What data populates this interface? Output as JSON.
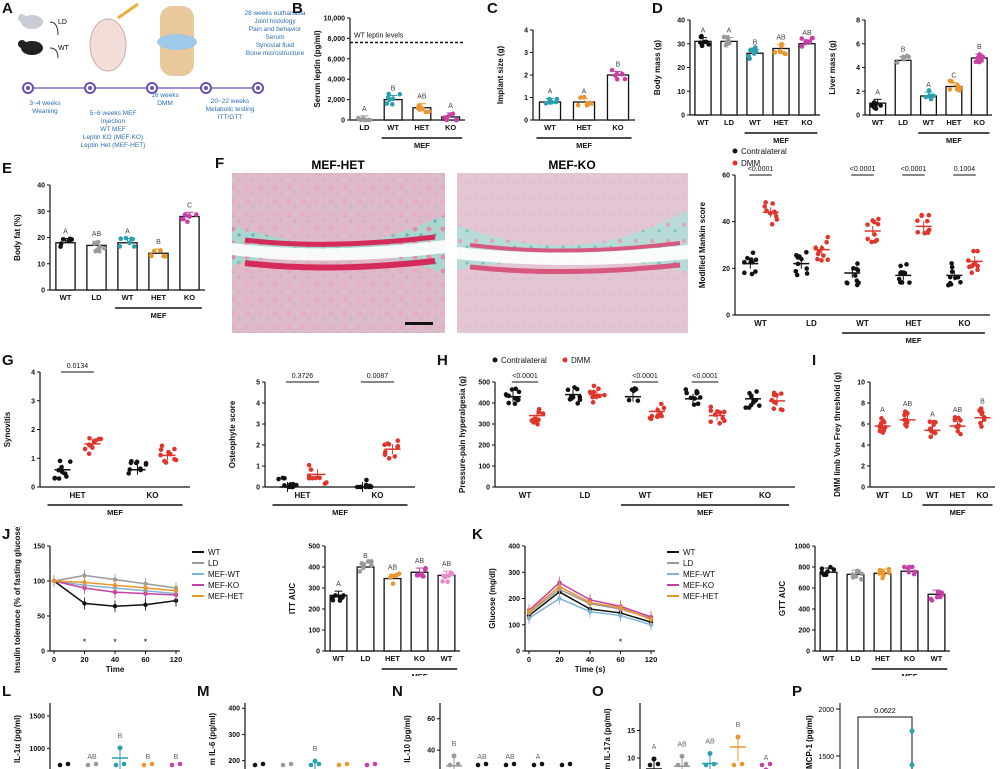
{
  "colors": {
    "black": "#111111",
    "gray": "#9a9a9a",
    "teal": "#2a9fae",
    "orange": "#e8962e",
    "magenta": "#c83fa5",
    "red": "#e0352b",
    "lightblue": "#7fb6d6",
    "pink": "#e88ac8"
  },
  "panels": {
    "A": {
      "label": "A",
      "mouse_ld": "LD",
      "mouse_wt": "WT",
      "steps": [
        {
          "text": "3~4 weeks\nWeaning",
          "color": "#2a6fb5"
        },
        {
          "text": "5~6 weeks MEF\nInjection\nWT MEF\nLeptin KO (MEF-KO)\nLeptin Het (MEF-HET)",
          "color": "#2a6fb5"
        },
        {
          "text": "16 weeks\nDMM",
          "color": "#2a6fb5"
        },
        {
          "text": "20~22 weeks\nMetabolic testing\nITT/GTT",
          "color": "#2a6fb5"
        },
        {
          "text": "28 weeks euthanasia\nJoint histology\nPain and behavior\nSerum\nSynovial fluid\nBone microstructure",
          "color": "#2a6fb5"
        }
      ]
    },
    "F": {
      "label": "F",
      "left_title": "MEF-HET",
      "right_title": "MEF-KO"
    },
    "P": {
      "label": "P",
      "ylabel": "MCP-1 (pg/ml)",
      "tick_top": "2000",
      "tick_mid": "1500",
      "pvalue": "0.0622"
    }
  },
  "chart_data": [
    {
      "id": "B",
      "label": "B",
      "type": "bar",
      "title": "",
      "ylabel": "Serum leptin (pg/ml)",
      "yticks": [
        "0",
        "2,000",
        "4,000",
        "6,000",
        "8,000",
        "10,000"
      ],
      "ylim": [
        0,
        10000
      ],
      "categories": [
        "LD",
        "WT",
        "HET",
        "KO"
      ],
      "values": [
        0,
        2000,
        1200,
        300
      ],
      "letters": [
        "A",
        "B",
        "AB",
        "A"
      ],
      "point_colors": [
        "gray",
        "teal",
        "orange",
        "magenta"
      ],
      "reference_line": {
        "value": 7600,
        "label": "WT leptin levels"
      },
      "group_label": "MEF",
      "group_span": [
        1,
        3
      ]
    },
    {
      "id": "C",
      "label": "C",
      "type": "bar",
      "ylabel": "Implant size (g)",
      "yticks": [
        "0",
        "1",
        "2",
        "3",
        "4"
      ],
      "ylim": [
        0,
        4
      ],
      "categories": [
        "WT",
        "HET",
        "KO"
      ],
      "values": [
        0.8,
        0.8,
        2.0
      ],
      "letters": [
        "A",
        "A",
        "B"
      ],
      "point_colors": [
        "teal",
        "orange",
        "magenta"
      ],
      "group_label": "MEF",
      "group_span": [
        0,
        2
      ]
    },
    {
      "id": "D1",
      "label": "D",
      "type": "bar",
      "ylabel": "Body mass (g)",
      "yticks": [
        "0",
        "10",
        "20",
        "30",
        "40"
      ],
      "ylim": [
        0,
        40
      ],
      "categories": [
        "WT",
        "LD",
        "WT",
        "HET",
        "KO"
      ],
      "values": [
        31,
        31,
        26,
        28,
        30
      ],
      "letters": [
        "A",
        "A",
        "B",
        "AB",
        "AB"
      ],
      "point_colors": [
        "black",
        "gray",
        "teal",
        "orange",
        "magenta"
      ],
      "group_label": "MEF",
      "group_span": [
        2,
        4
      ]
    },
    {
      "id": "D2",
      "label": "",
      "type": "bar",
      "ylabel": "Liver mass (g)",
      "yticks": [
        "0",
        "2",
        "4",
        "6",
        "8"
      ],
      "ylim": [
        0,
        8
      ],
      "categories": [
        "WT",
        "LD",
        "WT",
        "HET",
        "KO"
      ],
      "values": [
        1.0,
        4.6,
        1.6,
        2.4,
        4.8
      ],
      "letters": [
        "A",
        "B",
        "A",
        "C",
        "B"
      ],
      "point_colors": [
        "black",
        "gray",
        "teal",
        "orange",
        "magenta"
      ],
      "group_label": "MEF",
      "group_span": [
        2,
        4
      ]
    },
    {
      "id": "E",
      "label": "E",
      "type": "bar",
      "ylabel": "Body fat (%)",
      "yticks": [
        "0",
        "10",
        "20",
        "30",
        "40"
      ],
      "ylim": [
        0,
        40
      ],
      "categories": [
        "WT",
        "LD",
        "WT",
        "HET",
        "KO"
      ],
      "values": [
        18,
        17,
        18,
        14,
        28
      ],
      "letters": [
        "A",
        "AB",
        "A",
        "B",
        "C"
      ],
      "point_colors": [
        "black",
        "gray",
        "teal",
        "orange",
        "magenta"
      ],
      "group_label": "MEF",
      "group_span": [
        2,
        4
      ]
    },
    {
      "id": "F2",
      "label": "",
      "type": "scatter",
      "ylabel": "Modified Mankin score",
      "yticks": [
        "0",
        "20",
        "40",
        "60"
      ],
      "ylim": [
        0,
        60
      ],
      "categories": [
        "WT",
        "LD",
        "WT",
        "HET",
        "KO"
      ],
      "series": [
        {
          "name": "Contralateral",
          "color": "black",
          "values": [
            22,
            22,
            18,
            17,
            17
          ]
        },
        {
          "name": "DMM",
          "color": "red",
          "values": [
            44,
            28,
            36,
            38,
            23
          ]
        }
      ],
      "pvalues": [
        "<0.0001",
        "",
        "<0.0001",
        "<0.0001",
        "0.1004"
      ],
      "group_label": "MEF",
      "group_span": [
        2,
        4
      ]
    },
    {
      "id": "G1",
      "label": "G",
      "type": "scatter",
      "ylabel": "Synovitis",
      "yticks": [
        "0",
        "1",
        "2",
        "3",
        "4"
      ],
      "ylim": [
        0,
        4
      ],
      "categories": [
        "HET",
        "KO"
      ],
      "series": [
        {
          "name": "Contralateral",
          "color": "black",
          "values": [
            0.6,
            0.6
          ]
        },
        {
          "name": "DMM",
          "color": "red",
          "values": [
            1.5,
            1.1
          ]
        }
      ],
      "pvalues": [
        "0.0134",
        ""
      ],
      "group_label": "MEF",
      "group_span": [
        0,
        1
      ]
    },
    {
      "id": "G2",
      "label": "",
      "type": "scatter",
      "ylabel": "Osteophyte score",
      "yticks": [
        "0",
        "1",
        "2",
        "3",
        "4",
        "5"
      ],
      "ylim": [
        0,
        5
      ],
      "categories": [
        "HET",
        "KO"
      ],
      "series": [
        {
          "name": "Contralateral",
          "color": "black",
          "values": [
            0.0,
            0.0
          ]
        },
        {
          "name": "DMM",
          "color": "red",
          "values": [
            0.6,
            1.8
          ]
        }
      ],
      "pvalues": [
        "0.3726",
        "0.0087"
      ],
      "group_label": "MEF",
      "group_span": [
        0,
        1
      ]
    },
    {
      "id": "H",
      "label": "H",
      "type": "scatter",
      "ylabel": "Pressure-pain hyperalgesia (g)",
      "yticks": [
        "0",
        "100",
        "200",
        "300",
        "400",
        "500"
      ],
      "ylim": [
        0,
        500
      ],
      "categories": [
        "WT",
        "LD",
        "WT",
        "HET",
        "KO"
      ],
      "series": [
        {
          "name": "Contralateral",
          "color": "black",
          "values": [
            430,
            440,
            430,
            420,
            420
          ]
        },
        {
          "name": "DMM",
          "color": "red",
          "values": [
            340,
            440,
            360,
            340,
            410
          ]
        }
      ],
      "pvalues": [
        "<0.0001",
        "",
        "<0.0001",
        "<0.0001",
        ""
      ],
      "legend": [
        "Contralateral",
        "DMM"
      ],
      "group_label": "MEF",
      "group_span": [
        2,
        4
      ]
    },
    {
      "id": "I",
      "label": "I",
      "type": "scatter",
      "ylabel": "DMM limb Von Frey threshold (g)",
      "yticks": [
        "0",
        "2",
        "4",
        "6",
        "8",
        "10"
      ],
      "ylim": [
        0,
        10
      ],
      "categories": [
        "WT",
        "LD",
        "WT",
        "HET",
        "KO"
      ],
      "series": [
        {
          "name": "DMM",
          "color": "red",
          "values": [
            5.8,
            6.4,
            5.4,
            5.8,
            6.6
          ]
        }
      ],
      "letters": [
        "A",
        "AB",
        "A",
        "AB",
        "B"
      ],
      "group_label": "MEF",
      "group_span": [
        2,
        4
      ]
    },
    {
      "id": "J1",
      "label": "J",
      "type": "line",
      "ylabel": "Insulin tolerance (% of fasting glucose)",
      "xlabel": "Time",
      "x": [
        0,
        20,
        40,
        60,
        120
      ],
      "xticks": [
        "0",
        "20",
        "40",
        "60",
        "120"
      ],
      "yticks": [
        "0",
        "50",
        "100",
        "150"
      ],
      "ylim": [
        0,
        150
      ],
      "series": [
        {
          "name": "WT",
          "color": "black",
          "values": [
            100,
            68,
            64,
            66,
            72
          ]
        },
        {
          "name": "LD",
          "color": "gray",
          "values": [
            100,
            108,
            102,
            96,
            90
          ]
        },
        {
          "name": "MEF-WT",
          "color": "lightblue",
          "values": [
            100,
            94,
            90,
            86,
            82
          ]
        },
        {
          "name": "MEF-KO",
          "color": "magenta",
          "values": [
            100,
            90,
            84,
            82,
            80
          ]
        },
        {
          "name": "MEF-HET",
          "color": "orange",
          "values": [
            100,
            98,
            94,
            90,
            86
          ]
        }
      ],
      "stars": [
        1,
        2,
        3
      ]
    },
    {
      "id": "J2",
      "label": "",
      "type": "bar",
      "ylabel": "ITT AUC",
      "yticks": [
        "0",
        "100",
        "200",
        "300",
        "400",
        "500"
      ],
      "ylim": [
        0,
        500
      ],
      "categories": [
        "WT",
        "LD",
        "HET",
        "KO",
        "WT"
      ],
      "values": [
        265,
        400,
        345,
        375,
        360
      ],
      "letters": [
        "A",
        "B",
        "AB",
        "AB",
        "AB"
      ],
      "point_colors": [
        "black",
        "gray",
        "orange",
        "magenta",
        "pink"
      ],
      "group_label": "MEF",
      "group_span": [
        2,
        4
      ]
    },
    {
      "id": "K1",
      "label": "K",
      "type": "line",
      "ylabel": "Glucose (mg/dl)",
      "xlabel": "Time (s)",
      "x": [
        0,
        20,
        40,
        60,
        120
      ],
      "xticks": [
        "0",
        "20",
        "40",
        "60",
        "120"
      ],
      "yticks": [
        "0",
        "100",
        "200",
        "300",
        "400"
      ],
      "ylim": [
        0,
        400
      ],
      "series": [
        {
          "name": "WT",
          "color": "black",
          "values": [
            135,
            225,
            160,
            145,
            110
          ]
        },
        {
          "name": "LD",
          "color": "gray",
          "values": [
            145,
            235,
            180,
            160,
            125
          ]
        },
        {
          "name": "MEF-WT",
          "color": "lightblue",
          "values": [
            125,
            200,
            150,
            135,
            100
          ]
        },
        {
          "name": "MEF-KO",
          "color": "magenta",
          "values": [
            155,
            260,
            195,
            170,
            130
          ]
        },
        {
          "name": "MEF-HET",
          "color": "orange",
          "values": [
            150,
            245,
            185,
            165,
            120
          ]
        }
      ],
      "stars": [
        3
      ]
    },
    {
      "id": "K2",
      "label": "",
      "type": "bar",
      "ylabel": "GTT AUC",
      "yticks": [
        "0",
        "200",
        "400",
        "600",
        "800",
        "1000"
      ],
      "ylim": [
        0,
        1000
      ],
      "categories": [
        "WT",
        "LD",
        "HET",
        "KO",
        "WT"
      ],
      "values": [
        750,
        730,
        740,
        760,
        540
      ],
      "letters": [],
      "point_colors": [
        "black",
        "gray",
        "orange",
        "magenta",
        "magenta"
      ],
      "group_label": "MEF",
      "group_span": [
        2,
        4
      ]
    },
    {
      "id": "L",
      "label": "L",
      "type": "bar",
      "truncated": true,
      "ylabel": "IL-1α (pg/ml)",
      "yticks": [
        "1000",
        "1500"
      ],
      "ytick_values": [
        1000,
        1500
      ],
      "ylim": [
        0,
        1700
      ],
      "values": [
        0,
        0,
        850,
        0,
        0
      ],
      "letters": [
        "",
        "AB",
        "B",
        "B",
        "B"
      ],
      "point_colors": [
        "black",
        "gray",
        "teal",
        "orange",
        "magenta"
      ]
    },
    {
      "id": "M",
      "label": "M",
      "type": "bar",
      "truncated": true,
      "ylabel": "m IL-6 (pg/ml)",
      "yticks": [
        "400",
        "300",
        "200"
      ],
      "ytick_values": [
        400,
        300,
        200
      ],
      "ylim": [
        0,
        420
      ],
      "values": [
        0,
        0,
        160,
        0,
        0
      ],
      "letters": [
        "",
        "",
        "B",
        "",
        ""
      ],
      "point_colors": [
        "black",
        "gray",
        "teal",
        "orange",
        "magenta"
      ]
    },
    {
      "id": "N",
      "label": "N",
      "type": "bar",
      "truncated": true,
      "ylabel": "IL-10 (pg/ml)",
      "yticks": [
        "60",
        "40"
      ],
      "ytick_values": [
        60,
        40
      ],
      "ylim": [
        0,
        70
      ],
      "values": [
        30,
        0,
        0,
        0,
        0
      ],
      "letters": [
        "B",
        "AB",
        "AB",
        "A",
        ""
      ],
      "point_colors": [
        "gray",
        "black",
        "black",
        "black",
        "black"
      ]
    },
    {
      "id": "O",
      "label": "O",
      "type": "bar",
      "truncated": true,
      "ylabel": "m IL-17a (pg/ml)",
      "yticks": [
        "15",
        "10"
      ],
      "ytick_values": [
        15,
        10
      ],
      "ylim": [
        0,
        20
      ],
      "values": [
        8,
        8.5,
        9,
        12,
        6
      ],
      "letters": [
        "A",
        "AB",
        "AB",
        "B",
        "A"
      ],
      "point_colors": [
        "black",
        "gray",
        "teal",
        "orange",
        "magenta"
      ]
    }
  ]
}
